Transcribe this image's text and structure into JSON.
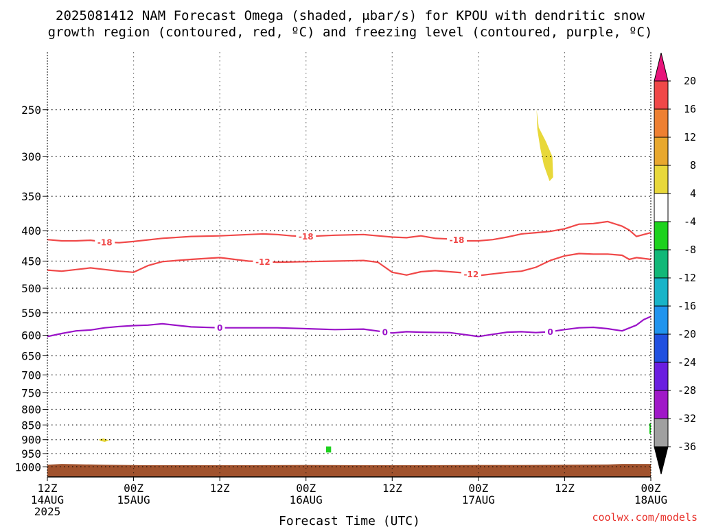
{
  "chart_data": {
    "type": "time-height cross section",
    "title_line1": "2025081412 NAM Forecast Omega (shaded, μbar/s) for KPOU with dendritic snow",
    "title_line2": "growth region (contoured, red, ºC) and freezing level (contoured, purple, ºC)",
    "xlabel": "Forecast Time (UTC)",
    "credit": "coolwx.com/models",
    "x_range_hours": [
      0,
      84
    ],
    "y_range_hpa": [
      200,
      1040
    ],
    "pressure_levels": [
      250,
      300,
      350,
      400,
      450,
      500,
      550,
      600,
      650,
      700,
      750,
      800,
      850,
      900,
      950,
      1000
    ],
    "x_ticks": [
      {
        "hour": 0,
        "lines": [
          "12Z",
          "14AUG",
          "2025"
        ]
      },
      {
        "hour": 12,
        "lines": [
          "00Z",
          "15AUG"
        ]
      },
      {
        "hour": 24,
        "lines": [
          "12Z"
        ]
      },
      {
        "hour": 36,
        "lines": [
          "00Z",
          "16AUG"
        ]
      },
      {
        "hour": 48,
        "lines": [
          "12Z"
        ]
      },
      {
        "hour": 60,
        "lines": [
          "00Z",
          "17AUG"
        ]
      },
      {
        "hour": 72,
        "lines": [
          "12Z"
        ]
      },
      {
        "hour": 84,
        "lines": [
          "00Z",
          "18AUG"
        ]
      }
    ],
    "colorbar": {
      "labels": [
        "20",
        "16",
        "12",
        "8",
        "4",
        "-4",
        "-8",
        "-12",
        "-16",
        "-20",
        "-24",
        "-28",
        "-32",
        "-36"
      ],
      "bins": [
        {
          "range": [
            16,
            20
          ],
          "color": "#f04848"
        },
        {
          "range": [
            12,
            16
          ],
          "color": "#ee8032"
        },
        {
          "range": [
            8,
            12
          ],
          "color": "#e8a82e"
        },
        {
          "range": [
            4,
            8
          ],
          "color": "#e8d83a"
        },
        {
          "range": [
            -4,
            4
          ],
          "color": "#ffffff"
        },
        {
          "range": [
            -8,
            -4
          ],
          "color": "#1ed21e"
        },
        {
          "range": [
            -12,
            -8
          ],
          "color": "#12b878"
        },
        {
          "range": [
            -16,
            -12
          ],
          "color": "#18b4c8"
        },
        {
          "range": [
            -20,
            -16
          ],
          "color": "#2094ee"
        },
        {
          "range": [
            -24,
            -20
          ],
          "color": "#2050e0"
        },
        {
          "range": [
            -28,
            -24
          ],
          "color": "#6a1ee0"
        },
        {
          "range": [
            -32,
            -28
          ],
          "color": "#a018c8"
        },
        {
          "range": [
            -36,
            -32
          ],
          "color": "#a0a0a0"
        }
      ],
      "over_color": "#e8147a",
      "under_color": "#000000"
    },
    "contours": [
      {
        "label": "-18",
        "color": "#f04848",
        "x": [
          0,
          2,
          4,
          6,
          8,
          10,
          12,
          16,
          20,
          24,
          28,
          30,
          32,
          34,
          36,
          40,
          44,
          48,
          50,
          52,
          54,
          56,
          58,
          60,
          62,
          64,
          66,
          68,
          70,
          72,
          74,
          76,
          78,
          80,
          81,
          82,
          84
        ],
        "y": [
          414,
          416,
          416,
          415,
          418,
          419,
          417,
          412,
          409,
          408,
          406,
          405,
          406,
          408,
          409,
          407,
          406,
          410,
          411,
          408,
          412,
          413,
          416,
          416,
          414,
          410,
          405,
          403,
          401,
          397,
          390,
          389,
          386,
          393,
          399,
          409,
          403
        ],
        "label_positions": [
          8,
          36,
          57
        ]
      },
      {
        "label": "-12",
        "color": "#f04848",
        "x": [
          0,
          2,
          4,
          6,
          8,
          10,
          12,
          14,
          16,
          20,
          24,
          28,
          32,
          36,
          40,
          44,
          46,
          48,
          50,
          52,
          54,
          56,
          58,
          60,
          62,
          64,
          66,
          68,
          70,
          72,
          74,
          76,
          78,
          80,
          81,
          82,
          84
        ],
        "y": [
          466,
          468,
          465,
          462,
          465,
          468,
          470,
          458,
          451,
          447,
          444,
          450,
          452,
          451,
          450,
          449,
          452,
          470,
          475,
          469,
          467,
          469,
          471,
          476,
          473,
          470,
          468,
          461,
          449,
          441,
          437,
          438,
          438,
          440,
          447,
          444,
          447
        ],
        "label_positions": [
          30,
          59
        ]
      },
      {
        "label": "0",
        "color": "#9a12c8",
        "x": [
          0,
          2,
          4,
          6,
          8,
          10,
          12,
          14,
          16,
          20,
          24,
          28,
          32,
          36,
          40,
          44,
          48,
          50,
          52,
          56,
          60,
          62,
          64,
          66,
          68,
          70,
          72,
          74,
          76,
          78,
          80,
          82,
          83,
          84
        ],
        "y": [
          603,
          596,
          590,
          588,
          583,
          580,
          578,
          577,
          574,
          581,
          583,
          583,
          583,
          585,
          587,
          586,
          595,
          592,
          593,
          594,
          603,
          598,
          593,
          592,
          594,
          592,
          587,
          583,
          582,
          585,
          590,
          577,
          565,
          558
        ],
        "label_positions": [
          24,
          47,
          70
        ]
      }
    ],
    "shaded_regions": [
      {
        "omega_bin": [
          4,
          8
        ],
        "color": "#e8d83a",
        "x": [
          68.1,
          68.4,
          69.4,
          70.3,
          70.4,
          69.9,
          69.1,
          68.6,
          68.2
        ],
        "y": [
          250,
          268,
          283,
          300,
          325,
          330,
          310,
          290,
          270
        ]
      },
      {
        "omega_bin": [
          4,
          8
        ],
        "color": "#e8d83a",
        "x": [
          7.2,
          7.8,
          8.6,
          8.0,
          7.3
        ],
        "y": [
          899,
          896,
          902,
          908,
          904
        ]
      },
      {
        "omega_bin": [
          -8,
          -4
        ],
        "color": "#1ed21e",
        "x": [
          38.8,
          39.5,
          39.5,
          38.8
        ],
        "y": [
          924,
          924,
          946,
          946
        ]
      },
      {
        "omega_bin": [
          -8,
          -4
        ],
        "color": "#1ed21e",
        "x": [
          83.8,
          84,
          84,
          83.8
        ],
        "y": [
          845,
          845,
          880,
          880
        ]
      }
    ],
    "ground": {
      "color": "#a0522d",
      "x": [
        0,
        2,
        4,
        8,
        14,
        20,
        28,
        36,
        44,
        52,
        60,
        66,
        72,
        78,
        80,
        84
      ],
      "y": [
        992,
        989,
        990,
        992,
        994,
        994,
        994,
        993,
        994,
        994,
        993,
        993,
        992,
        991,
        989,
        989
      ]
    }
  }
}
